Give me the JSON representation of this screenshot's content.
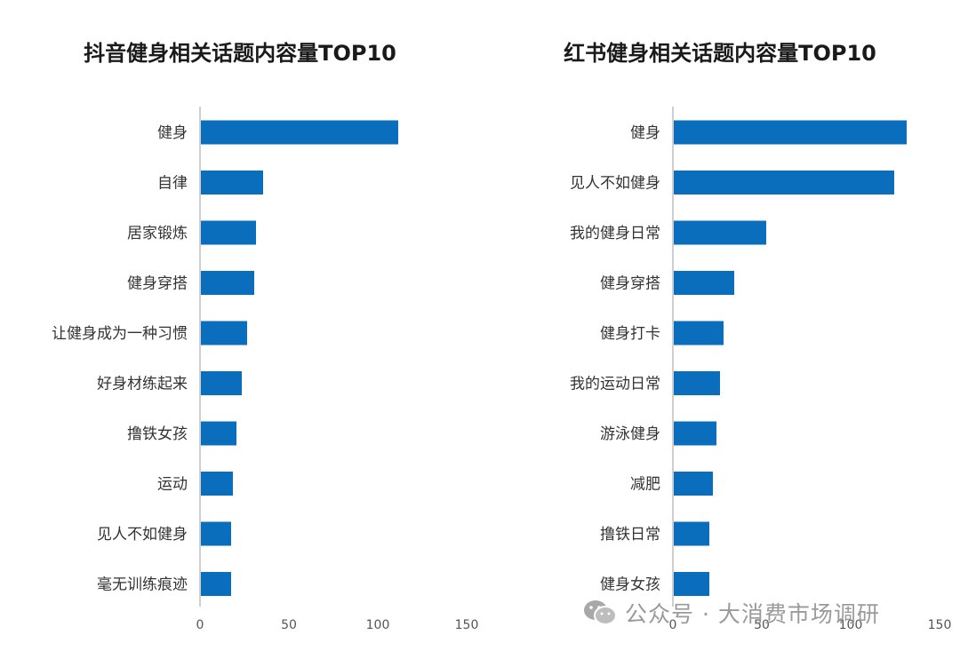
{
  "chart_data": [
    {
      "type": "bar",
      "orientation": "horizontal",
      "title": "抖音健身相关话题内容量TOP10",
      "categories": [
        "健身",
        "自律",
        "居家锻炼",
        "健身穿搭",
        "让健身成为一种习惯",
        "好身材练起来",
        "撸铁女孩",
        "运动",
        "见人不如健身",
        "毫无训练痕迹"
      ],
      "values": [
        111,
        35,
        31,
        30,
        26,
        23,
        20,
        18,
        17,
        17
      ],
      "xlim": [
        0,
        150
      ],
      "xticks": [
        0,
        50,
        100,
        150
      ],
      "grid": false,
      "color": "#0a6ebd"
    },
    {
      "type": "bar",
      "orientation": "horizontal",
      "title": "红书健身相关话题内容量TOP10",
      "categories": [
        "健身",
        "见人不如健身",
        "我的健身日常",
        "健身穿搭",
        "健身打卡",
        "我的运动日常",
        "游泳健身",
        "减肥",
        "撸铁日常",
        "健身女孩"
      ],
      "values": [
        131,
        124,
        52,
        34,
        28,
        26,
        24,
        22,
        20,
        20
      ],
      "xlim": [
        0,
        150
      ],
      "xticks": [
        0,
        50,
        100,
        150
      ],
      "grid": false,
      "color": "#0a6ebd"
    }
  ],
  "watermark": {
    "text": "公众号 · 大消费市场调研",
    "icon": "wechat-icon",
    "color": "#9a9a9a"
  }
}
